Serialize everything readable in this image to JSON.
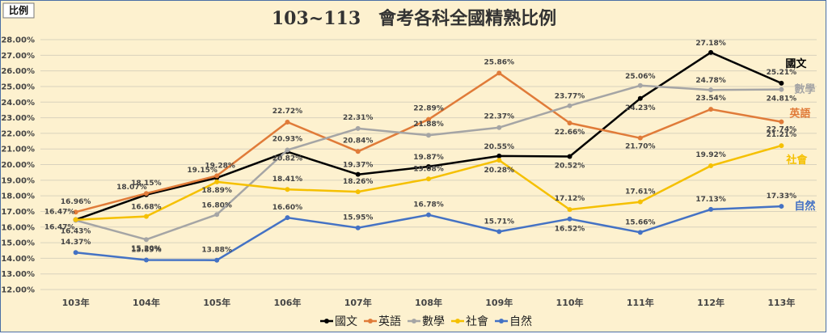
{
  "badge": "比例",
  "chart_data": {
    "type": "line",
    "title": "103~113　會考各科全國精熟比例",
    "categories": [
      "103年",
      "104年",
      "105年",
      "106年",
      "107年",
      "108年",
      "109年",
      "110年",
      "111年",
      "112年",
      "113年"
    ],
    "ylim": [
      12.0,
      28.0
    ],
    "yticks": [
      "12.00%",
      "13.00%",
      "14.00%",
      "15.00%",
      "16.00%",
      "17.00%",
      "18.00%",
      "19.00%",
      "20.00%",
      "21.00%",
      "22.00%",
      "23.00%",
      "24.00%",
      "25.00%",
      "26.00%",
      "27.00%",
      "28.00%"
    ],
    "grid": true,
    "legend_position": "bottom",
    "series": [
      {
        "name": "國文",
        "color": "#000000",
        "values": [
          16.47,
          18.07,
          19.15,
          20.82,
          19.37,
          19.87,
          20.55,
          20.52,
          24.23,
          27.18,
          25.21
        ],
        "labels": [
          "16.47%",
          "18.07%",
          "19.15%",
          "20.82%",
          "19.37%",
          "19.87%",
          "20.55%",
          "20.52%",
          "24.23%",
          "27.18%",
          "25.21%"
        ],
        "end_label": "國文"
      },
      {
        "name": "英語",
        "color": "#e07b39",
        "values": [
          16.96,
          18.15,
          19.28,
          22.72,
          20.84,
          22.89,
          25.86,
          22.66,
          21.7,
          23.54,
          22.74
        ],
        "labels": [
          "16.96%",
          "18.15%",
          "19.28%",
          "22.72%",
          "20.84%",
          "22.89%",
          "25.86%",
          "22.66%",
          "21.70%",
          "23.54%",
          "22.74%"
        ],
        "end_label": "英語"
      },
      {
        "name": "數學",
        "color": "#a5a5a5",
        "values": [
          16.43,
          15.2,
          16.8,
          20.93,
          22.31,
          21.88,
          22.37,
          23.77,
          25.06,
          24.78,
          24.81
        ],
        "labels": [
          "16.43%",
          "15.20%",
          "16.80%",
          "20.93%",
          "22.31%",
          "21.88%",
          "22.37%",
          "23.77%",
          "25.06%",
          "24.78%",
          "24.81%"
        ],
        "end_label": "數學"
      },
      {
        "name": "社會",
        "color": "#f5c000",
        "values": [
          16.47,
          16.68,
          18.89,
          18.41,
          18.26,
          19.08,
          20.28,
          17.12,
          17.61,
          19.92,
          21.21
        ],
        "labels": [
          "16.47%",
          "16.68%",
          "18.89%",
          "18.41%",
          "18.26%",
          "19.08%",
          "20.28%",
          "17.12%",
          "17.61%",
          "19.92%",
          "21.21%"
        ],
        "end_label": "社會"
      },
      {
        "name": "自然",
        "color": "#4472c4",
        "values": [
          14.37,
          13.89,
          13.88,
          16.6,
          15.95,
          16.78,
          15.71,
          16.52,
          15.66,
          17.13,
          17.33
        ],
        "labels": [
          "14.37%",
          "13.89%",
          "13.88%",
          "16.60%",
          "15.95%",
          "16.78%",
          "15.71%",
          "16.52%",
          "15.66%",
          "17.13%",
          "17.33%"
        ],
        "end_label": "自然"
      }
    ]
  }
}
